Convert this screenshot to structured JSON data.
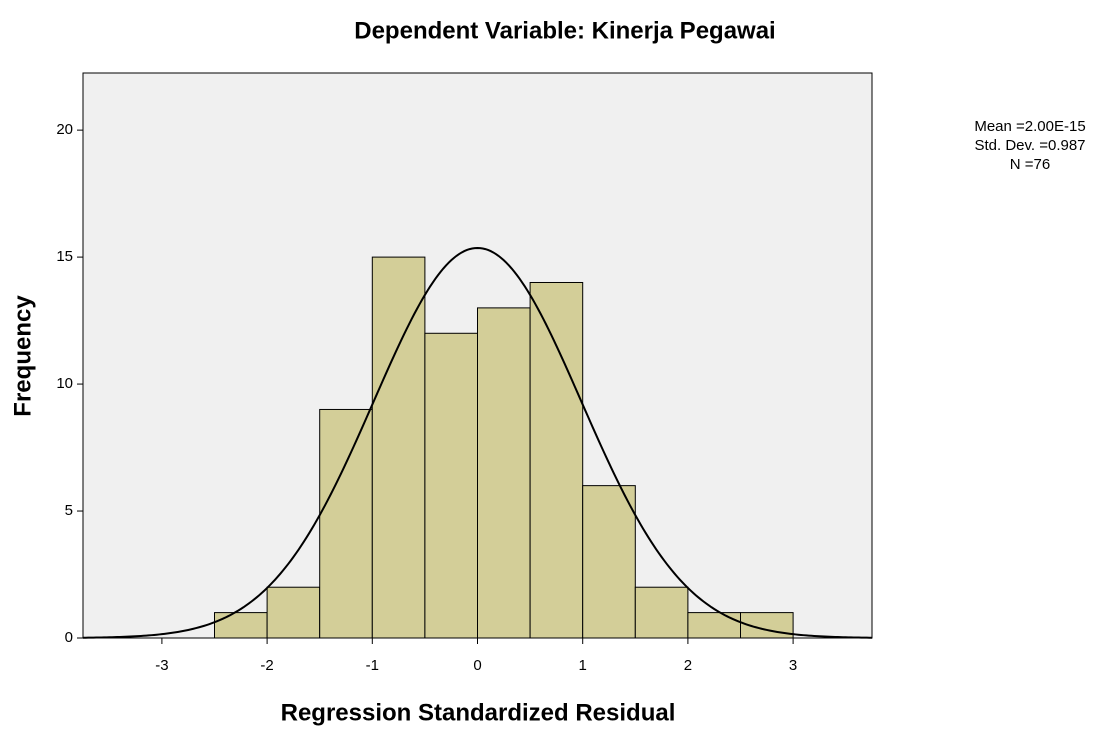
{
  "chart_data": {
    "type": "histogram",
    "title": "Dependent Variable: Kinerja Pegawai",
    "x_label": "Regression Standardized Residual",
    "y_label": "Frequency",
    "bins": [
      -2.5,
      -2,
      -1.5,
      -1,
      -0.5,
      0,
      0.5,
      1,
      1.5,
      2,
      2.5,
      3
    ],
    "counts": [
      1,
      2,
      9,
      15,
      12,
      13,
      14,
      6,
      2,
      1,
      1
    ],
    "color": "#d3ce98",
    "curve_color": "#000000",
    "background": "#f0f0f0",
    "stats": [
      {
        "value": 2e-15,
        "label": "Mean =2.00E-15"
      },
      {
        "value": 0.987,
        "label": "Std. Dev. =0.987"
      },
      {
        "value": 76,
        "label": "N =76"
      }
    ],
    "xlim": [
      -3.75,
      3.75
    ],
    "ylim": [
      0,
      22.25
    ],
    "xticks": [
      -3,
      -2,
      -1,
      0,
      1,
      2,
      3
    ],
    "yticks": [
      0,
      5,
      10,
      15,
      20
    ]
  }
}
